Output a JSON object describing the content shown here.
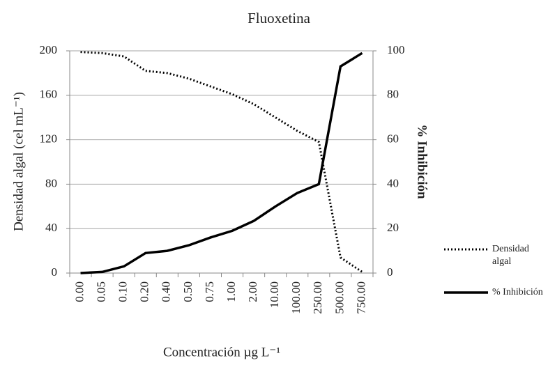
{
  "chart_data": {
    "type": "line",
    "title": "Fluoxetina",
    "x_label": "Concentración µg L⁻¹",
    "y_label": "Densidad algal (cel mL⁻¹)",
    "y2_label": "% Inhibición",
    "categories": [
      "0.00",
      "0.05",
      "0.10",
      "0.20",
      "0.40",
      "0.50",
      "0.75",
      "1.00",
      "2.00",
      "10.00",
      "100.00",
      "250.00",
      "500.00",
      "750.00"
    ],
    "series": [
      {
        "name": "Densidad algal",
        "color": "#000000",
        "dash": "dotted",
        "values": [
          199,
          198,
          195,
          182,
          180,
          175,
          168,
          161,
          152,
          140,
          128,
          118,
          14,
          1
        ]
      },
      {
        "name": "% Inhibición",
        "color": "#000000",
        "dash": "solid",
        "axis": "y2",
        "values": [
          0,
          0.5,
          3,
          9,
          10,
          12.5,
          16,
          19,
          23.5,
          30,
          36,
          40,
          93,
          99
        ]
      }
    ],
    "ylim": [
      0,
      200
    ],
    "yticks": [
      0,
      40,
      80,
      120,
      160,
      200
    ],
    "y2lim": [
      0,
      100
    ],
    "y2ticks": [
      0,
      20,
      40,
      60,
      80,
      100
    ],
    "grid": true,
    "legend": "right"
  }
}
